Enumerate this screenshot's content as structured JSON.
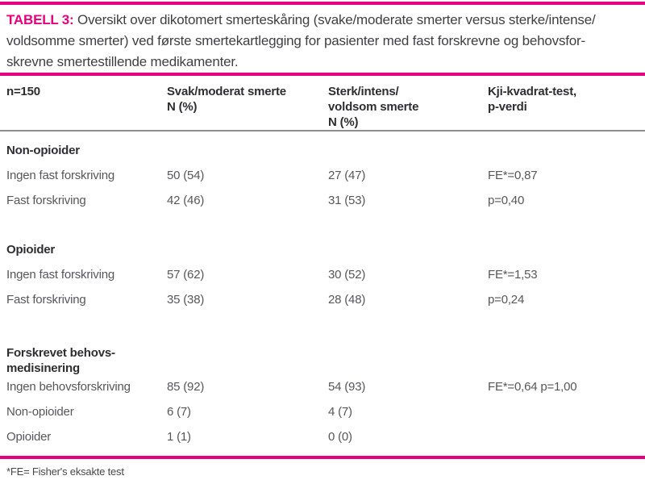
{
  "colors": {
    "accent_magenta": "#e6007e",
    "rule_gray": "#8c8c8c",
    "heading_text": "#2e2e30",
    "body_text": "#57575a"
  },
  "caption": {
    "tag": "TABELL 3:",
    "line1": "Oversikt over dikotomert smerteskåring (svake/moderate smerter versus sterke/intense/",
    "line2": "voldsomme smerter) ved første smertekartlegging for pasienter med fast forskrevne og behovsfor-",
    "line3": "skrevne smertestillende medikamenter."
  },
  "table": {
    "columns": [
      "n=150",
      "Svak/moderat smerte\nN (%)",
      "Sterk/intens/\nvoldsom smerte\nN (%)",
      "Kji-kvadrat-test,\np-verdi"
    ],
    "sections": [
      {
        "header": "Non-opioider",
        "rows": [
          {
            "label": "Ingen fast forskriving",
            "svak": "50 (54)",
            "sterk": "27 (47)",
            "test": "FE*=0,87"
          },
          {
            "label": "Fast forskriving",
            "svak": "42 (46)",
            "sterk": "31 (53)",
            "test": "p=0,40"
          }
        ]
      },
      {
        "header": "Opioider",
        "rows": [
          {
            "label": "Ingen fast forskriving",
            "svak": "57 (62)",
            "sterk": "30 (52)",
            "test": "FE*=1,53"
          },
          {
            "label": "Fast forskriving",
            "svak": "35 (38)",
            "sterk": "28 (48)",
            "test": "p=0,24"
          }
        ]
      },
      {
        "header": "Forskrevet behovs-\nmedisinering",
        "rows": [
          {
            "label": "Ingen behovsforskriving",
            "svak": "85 (92)",
            "sterk": "54 (93)",
            "test": "FE*=0,64 p=1,00"
          },
          {
            "label": "Non-opioider",
            "svak": "6 (7)",
            "sterk": "4 (7)",
            "test": ""
          },
          {
            "label": "Opioider",
            "svak": "1 (1)",
            "sterk": "0 (0)",
            "test": ""
          }
        ]
      }
    ]
  },
  "footnote": "*FE= Fisher's eksakte test"
}
